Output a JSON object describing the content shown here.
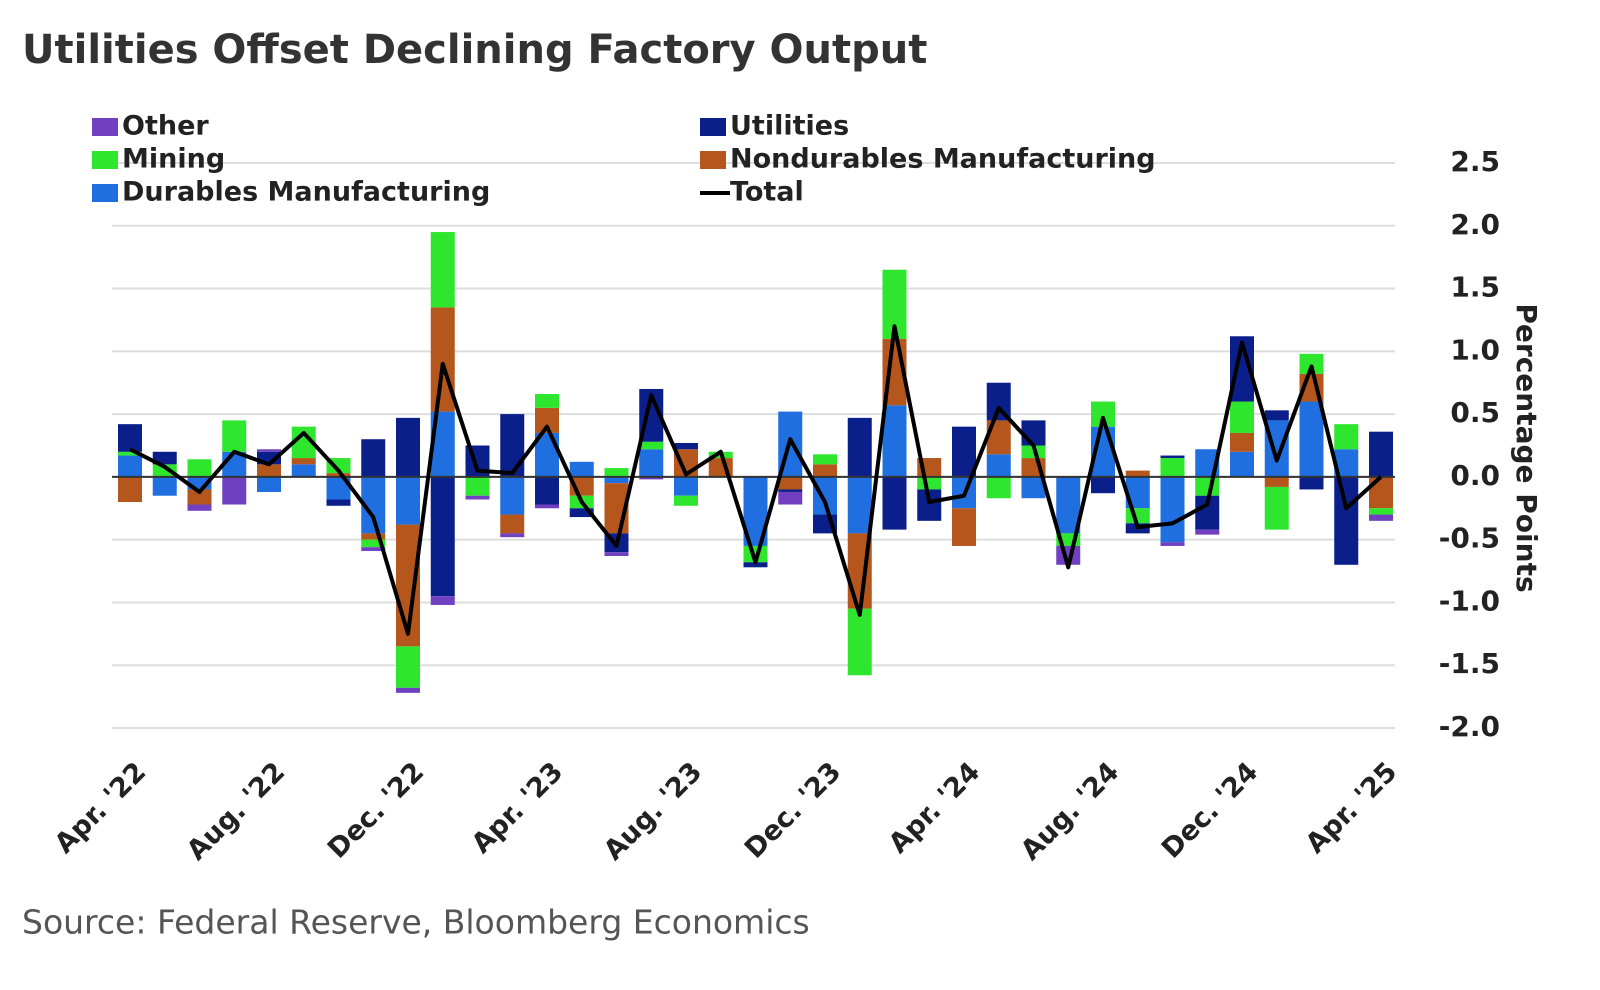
{
  "chart_data": {
    "type": "stacked_bar_line",
    "title": "Utilities Offset Declining Factory Output",
    "source": "Source: Federal Reserve, Bloomberg Economics",
    "y_label": "Percentage Points",
    "categories": [
      "Apr. '22",
      null,
      null,
      null,
      "Aug. '22",
      null,
      null,
      null,
      "Dec. '22",
      null,
      null,
      null,
      "Apr. '23",
      null,
      null,
      null,
      "Aug. '23",
      null,
      null,
      null,
      "Dec. '23",
      null,
      null,
      null,
      "Apr. '24",
      null,
      null,
      null,
      "Aug. '24",
      null,
      null,
      null,
      "Dec. '24",
      null,
      null,
      null,
      "Apr. '25"
    ],
    "series": [
      {
        "name": "Durables Manufacturing",
        "color": "#1f6fe0",
        "values": [
          0.17,
          -0.15,
          -0.1,
          0.2,
          -0.12,
          0.1,
          -0.18,
          -0.45,
          -0.38,
          0.52,
          0,
          -0.3,
          0.35,
          0.12,
          -0.05,
          0.22,
          -0.15,
          0,
          -0.55,
          0.52,
          -0.3,
          -0.45,
          0.57,
          0,
          -0.25,
          0.18,
          -0.17,
          -0.45,
          0.4,
          -0.25,
          -0.52,
          0.22,
          0.2,
          0.45,
          0.6,
          0.22,
          0
        ]
      },
      {
        "name": "Nondurables Manufacturing",
        "color": "#b5561c",
        "values": [
          -0.2,
          0,
          -0.12,
          0,
          0.1,
          0.05,
          0.03,
          -0.05,
          -0.97,
          0.83,
          0,
          -0.15,
          0.2,
          -0.15,
          -0.4,
          0,
          0.22,
          0.15,
          0,
          -0.1,
          0.1,
          -0.6,
          0.53,
          0.15,
          -0.3,
          0.27,
          0.15,
          0,
          0,
          0.05,
          0,
          0,
          0.15,
          -0.08,
          0.22,
          0,
          -0.25
        ]
      },
      {
        "name": "Mining",
        "color": "#2ee62e",
        "values": [
          0.03,
          0.1,
          0.14,
          0.25,
          0,
          0.25,
          0.12,
          -0.06,
          -0.33,
          0.6,
          -0.15,
          0,
          0.11,
          -0.1,
          0.07,
          0.06,
          -0.08,
          0.05,
          -0.13,
          0,
          0.08,
          -0.53,
          0.55,
          -0.1,
          0,
          -0.17,
          0.1,
          -0.1,
          0.2,
          -0.12,
          0.15,
          -0.15,
          0.25,
          -0.34,
          0.16,
          0.2,
          -0.05
        ]
      },
      {
        "name": "Utilities",
        "color": "#0b1f8a",
        "values": [
          0.22,
          0.1,
          0,
          0,
          0.1,
          0,
          -0.05,
          0.3,
          0.47,
          -0.95,
          0.25,
          0.5,
          -0.22,
          -0.07,
          -0.15,
          0.42,
          0.05,
          0,
          -0.04,
          -0.02,
          -0.15,
          0.47,
          -0.42,
          -0.25,
          0.4,
          0.3,
          0.2,
          0,
          -0.13,
          -0.08,
          0.02,
          -0.27,
          0.52,
          0.08,
          -0.1,
          -0.7,
          0.36
        ]
      },
      {
        "name": "Other",
        "color": "#7040c0",
        "values": [
          0,
          0,
          -0.05,
          -0.22,
          0.02,
          0,
          0,
          -0.03,
          -0.04,
          -0.07,
          -0.03,
          -0.03,
          -0.03,
          0,
          -0.03,
          -0.02,
          0,
          0,
          0,
          -0.1,
          0,
          0,
          0,
          0,
          0,
          0,
          0,
          -0.15,
          0,
          0,
          -0.03,
          -0.04,
          0,
          0,
          0,
          0,
          -0.05
        ]
      }
    ],
    "total": {
      "name": "Total",
      "color": "#000000",
      "values": [
        0.22,
        0.08,
        -0.12,
        0.2,
        0.1,
        0.35,
        0.05,
        -0.32,
        -1.25,
        0.9,
        0.05,
        0.03,
        0.4,
        -0.2,
        -0.55,
        0.65,
        0.02,
        0.2,
        -0.68,
        0.3,
        -0.2,
        -1.1,
        1.2,
        -0.2,
        -0.15,
        0.55,
        0.25,
        -0.72,
        0.47,
        -0.4,
        -0.37,
        -0.22,
        1.07,
        0.13,
        0.88,
        -0.25,
        0
      ]
    },
    "ylim": [
      -2.0,
      2.5
    ],
    "yticks": [
      {
        "value": -2,
        "label": "-2.0"
      },
      -1.5,
      {
        "value": -1,
        "label": "-1.0"
      },
      -0.5,
      {
        "value": 0,
        "label": "0.0"
      },
      0.5,
      {
        "value": 1,
        "label": "1.0"
      },
      1.5,
      {
        "value": 2,
        "label": "2.0"
      },
      2.5
    ],
    "grid": true
  }
}
